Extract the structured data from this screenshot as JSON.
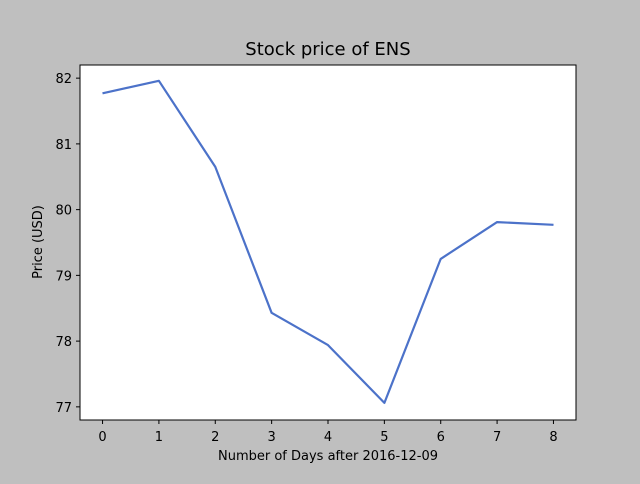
{
  "chart_data": {
    "type": "line",
    "title": "Stock price of ENS",
    "xlabel": "Number of Days after 2016-12-09",
    "ylabel": "Price (USD)",
    "xlim": [
      -0.4,
      8.4
    ],
    "ylim": [
      76.8,
      82.2
    ],
    "xticks": [
      0,
      1,
      2,
      3,
      4,
      5,
      6,
      7,
      8
    ],
    "yticks": [
      77,
      78,
      79,
      80,
      81,
      82
    ],
    "grid": false,
    "legend": "none",
    "series": [
      {
        "color": "#4c72c9",
        "x": [
          0,
          1,
          2,
          3,
          4,
          5,
          6,
          7,
          8
        ],
        "values": [
          81.77,
          81.96,
          80.65,
          78.43,
          77.94,
          77.06,
          79.25,
          79.81,
          79.77
        ]
      }
    ],
    "colors": {
      "figure_background": "#bfbfbf",
      "plot_background": "#ffffff",
      "axis": "#000000"
    }
  }
}
